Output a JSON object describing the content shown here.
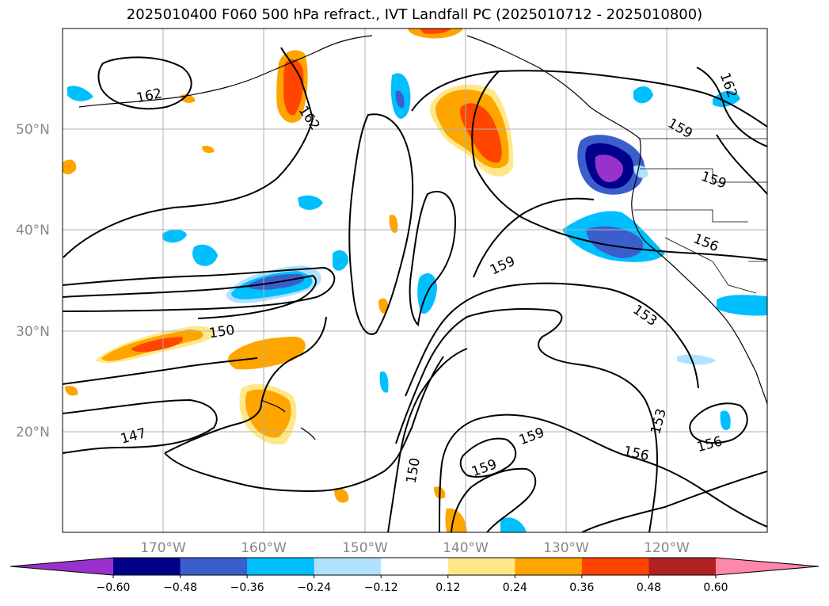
{
  "title": "2025010400 F060 500 hPa refract., IVT Landfall PC (2025010712 - 2025010800)",
  "latitude_labels": [
    "50°N",
    "40°N",
    "30°N",
    "20°N"
  ],
  "longitude_labels": [
    "170°W",
    "160°W",
    "150°W",
    "140°W",
    "130°W",
    "120°W"
  ],
  "contour_labels": [
    "162",
    "162",
    "162",
    "159",
    "159",
    "159",
    "159",
    "156",
    "156",
    "156",
    "153",
    "153",
    "150",
    "150",
    "147"
  ],
  "colorbar": {
    "tick_labels": [
      "−0.60",
      "−0.48",
      "−0.36",
      "−0.24",
      "−0.12",
      "0.12",
      "0.24",
      "0.36",
      "0.48",
      "0.60"
    ],
    "colors": [
      "#9932cc",
      "#00008b",
      "#3a5fcd",
      "#00bfff",
      "#b0e2ff",
      "#ffffff",
      "#ffe88a",
      "#ffa500",
      "#ff4500",
      "#b22222",
      "#ff88aa"
    ]
  },
  "fill_colors": {
    "purple": "#9932cc",
    "navy": "#00008b",
    "blue": "#3a5fcd",
    "cyan": "#00bfff",
    "lightblue": "#b0e2ff",
    "yellow": "#ffe88a",
    "orange": "#ffa500",
    "red": "#ff4500",
    "darkred": "#b22222"
  },
  "chart_data": {
    "type": "heatmap",
    "title": "2025010400 F060 500 hPa refract., IVT Landfall PC (2025010712 - 2025010800)",
    "lon_range": [
      -180,
      -110
    ],
    "lat_range": [
      10,
      60
    ],
    "contour_levels": [
      147,
      150,
      153,
      156,
      159,
      162
    ],
    "colorbar_levels": [
      -0.6,
      -0.48,
      -0.36,
      -0.24,
      -0.12,
      0.12,
      0.24,
      0.36,
      0.48,
      0.6
    ],
    "grid": true
  }
}
